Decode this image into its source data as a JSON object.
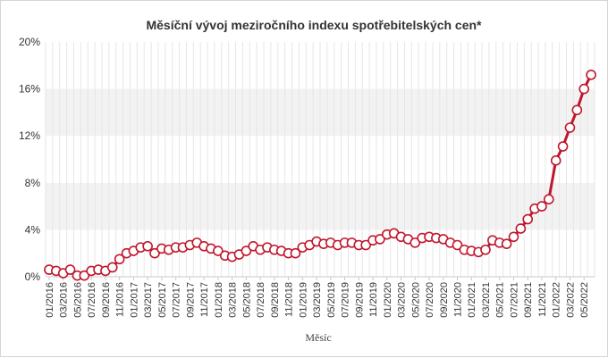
{
  "chart_data": {
    "type": "line",
    "title": "Měsíční vývoj meziročního indexu spotřebitelských cen*",
    "xlabel": "Měsíc",
    "ylabel": "",
    "ylim": [
      0,
      20
    ],
    "y_ticks": [
      "0%",
      "4%",
      "8%",
      "12%",
      "16%",
      "20%"
    ],
    "y_tick_values": [
      0,
      4,
      8,
      12,
      16,
      20
    ],
    "x_tick_labels": [
      "01/2016",
      "03/2016",
      "05/2016",
      "07/2016",
      "09/2016",
      "11/2016",
      "01/2017",
      "03/2017",
      "05/2017",
      "07/2017",
      "09/2017",
      "11/2017",
      "01/2018",
      "03/2018",
      "05/2018",
      "07/2018",
      "09/2018",
      "11/2018",
      "01/2019",
      "03/2019",
      "05/2019",
      "07/2019",
      "09/2019",
      "11/2019",
      "01/2020",
      "03/2020",
      "05/2020",
      "07/2020",
      "09/2020",
      "11/2020",
      "01/2021",
      "03/2021",
      "05/2021",
      "07/2021",
      "09/2021",
      "11/2021",
      "01/2022",
      "03/2022",
      "05/2022"
    ],
    "alternating_bands": true,
    "grid_vertical": true,
    "legend": "none",
    "colors": {
      "line": "#c0162c",
      "marker_fill": "#ffffff",
      "band": "#f2f2f2",
      "grid": "#e6e6e6"
    },
    "x": [
      "01/2016",
      "02/2016",
      "03/2016",
      "04/2016",
      "05/2016",
      "06/2016",
      "07/2016",
      "08/2016",
      "09/2016",
      "10/2016",
      "11/2016",
      "12/2016",
      "01/2017",
      "02/2017",
      "03/2017",
      "04/2017",
      "05/2017",
      "06/2017",
      "07/2017",
      "08/2017",
      "09/2017",
      "10/2017",
      "11/2017",
      "12/2017",
      "01/2018",
      "02/2018",
      "03/2018",
      "04/2018",
      "05/2018",
      "06/2018",
      "07/2018",
      "08/2018",
      "09/2018",
      "10/2018",
      "11/2018",
      "12/2018",
      "01/2019",
      "02/2019",
      "03/2019",
      "04/2019",
      "05/2019",
      "06/2019",
      "07/2019",
      "08/2019",
      "09/2019",
      "10/2019",
      "11/2019",
      "12/2019",
      "01/2020",
      "02/2020",
      "03/2020",
      "04/2020",
      "05/2020",
      "06/2020",
      "07/2020",
      "08/2020",
      "09/2020",
      "10/2020",
      "11/2020",
      "12/2020",
      "01/2021",
      "02/2021",
      "03/2021",
      "04/2021",
      "05/2021",
      "06/2021",
      "07/2021",
      "08/2021",
      "09/2021",
      "10/2021",
      "11/2021",
      "12/2021",
      "01/2022",
      "02/2022",
      "03/2022",
      "04/2022",
      "05/2022",
      "06/2022"
    ],
    "series": [
      {
        "values": [
          0.6,
          0.5,
          0.3,
          0.6,
          0.1,
          0.1,
          0.5,
          0.6,
          0.5,
          0.8,
          1.5,
          2.0,
          2.2,
          2.5,
          2.6,
          2.0,
          2.4,
          2.3,
          2.5,
          2.5,
          2.7,
          2.9,
          2.6,
          2.4,
          2.2,
          1.8,
          1.7,
          1.9,
          2.2,
          2.6,
          2.3,
          2.5,
          2.3,
          2.2,
          2.0,
          2.0,
          2.5,
          2.7,
          3.0,
          2.8,
          2.9,
          2.7,
          2.9,
          2.9,
          2.7,
          2.7,
          3.1,
          3.2,
          3.6,
          3.7,
          3.4,
          3.2,
          2.9,
          3.3,
          3.4,
          3.3,
          3.2,
          2.9,
          2.7,
          2.3,
          2.2,
          2.1,
          2.3,
          3.1,
          2.9,
          2.8,
          3.4,
          4.1,
          4.9,
          5.8,
          6.0,
          6.6,
          9.9,
          11.1,
          12.7,
          14.2,
          16.0,
          17.2
        ]
      }
    ]
  }
}
